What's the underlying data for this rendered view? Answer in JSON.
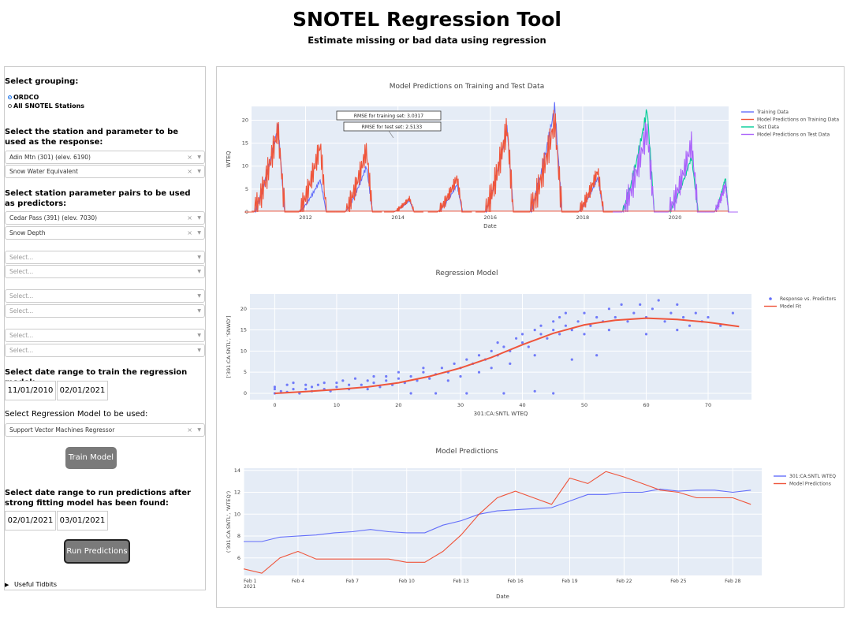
{
  "header": {
    "title": "SNOTEL Regression Tool",
    "subtitle": "Estimate missing or bad data using regression"
  },
  "sidebar": {
    "grouping_label": "Select grouping:",
    "grouping_options": [
      "ORDCO",
      "All SNOTEL Stations"
    ],
    "grouping_selected": "ORDCO",
    "response_label": "Select the station and parameter to be used as the response:",
    "response_station": "Adin Mtn (301) (elev. 6190)",
    "response_param": "Snow Water Equivalent",
    "predictors_label": "Select station parameter pairs to be used as predictors:",
    "predictor_station": "Cedar Pass (391) (elev. 7030)",
    "predictor_param": "Snow Depth",
    "empty_placeholder": "Select...",
    "train_range_label": "Select date range to train the regression model:",
    "train_start": "11/01/2010",
    "train_end": "02/01/2021",
    "model_label": "Select Regression Model to be used:",
    "model_selected": "Support Vector Machines Regressor",
    "train_button": "Train Model",
    "predict_range_label": "Select date range to run predictions after strong fitting model has been found:",
    "predict_start": "02/01/2021",
    "predict_end": "03/01/2021",
    "predict_button": "Run Predictions",
    "tidbits": "Useful Tidbits"
  },
  "colors": {
    "plot_bg": "#e5ecf6",
    "blue": "#636efa",
    "red": "#ef553b",
    "green": "#00cc96",
    "purple": "#ab63fa"
  },
  "chart_data": [
    {
      "type": "line",
      "title": "Model Predictions on Training and Test Data",
      "xlabel": "Date",
      "ylabel": "WTEQ",
      "ylim": [
        0,
        23
      ],
      "yticks": [
        0,
        5,
        10,
        15,
        20
      ],
      "xticks": [
        "2012",
        "2014",
        "2016",
        "2018",
        "2020"
      ],
      "xlim": [
        2010.83,
        2021.16
      ],
      "legend": [
        "Training Data",
        "Model Predictions on Training Data",
        "Test Data",
        "Model Predictions on Test Data"
      ],
      "annotations": [
        "RMSE for training set:  3.0317",
        "RMSE for test set:  2.5133"
      ],
      "season_peaks": [
        {
          "year": 2011,
          "train": 18.5,
          "pred": 18.0,
          "start": 2010.88,
          "end": 2011.55
        },
        {
          "year": 2012,
          "train": 7.0,
          "pred": 14.5,
          "start": 2011.85,
          "end": 2012.45
        },
        {
          "year": 2013,
          "train": 10.0,
          "pred": 13.5,
          "start": 2012.85,
          "end": 2013.45
        },
        {
          "year": 2014,
          "train": 2.5,
          "pred": 3.0,
          "start": 2013.9,
          "end": 2014.35
        },
        {
          "year": 2015,
          "train": 6.0,
          "pred": 7.5,
          "start": 2014.85,
          "end": 2015.4
        },
        {
          "year": 2016,
          "train": 18.5,
          "pred": 18.5,
          "start": 2015.88,
          "end": 2016.5
        },
        {
          "year": 2017,
          "train": 23.0,
          "pred": 20.0,
          "start": 2016.85,
          "end": 2017.55
        },
        {
          "year": 2018,
          "train": 7.5,
          "pred": 9.0,
          "start": 2017.9,
          "end": 2018.45
        },
        {
          "year": 2019,
          "train": 22.5,
          "pred": 18.0,
          "start": 2018.85,
          "end": 2019.55
        },
        {
          "year": 2020,
          "train": 12.0,
          "pred": 15.0,
          "start": 2019.85,
          "end": 2020.5
        },
        {
          "year": 2021,
          "train": 7.5,
          "pred": 6.0,
          "start": 2020.85,
          "end": 2021.16
        }
      ],
      "test_start": 2018.3
    },
    {
      "type": "scatter",
      "title": "Regression Model",
      "xlabel": "301:CA:SNTL WTEQ",
      "ylabel": "['391:CA:SNTL', 'SNWD']",
      "xlim": [
        -4,
        77
      ],
      "ylim": [
        -1.5,
        23.5
      ],
      "xticks": [
        0,
        10,
        20,
        30,
        40,
        50,
        60,
        70
      ],
      "yticks": [
        0,
        5,
        10,
        15,
        20
      ],
      "legend": [
        "Response vs. Predictors",
        "Model Fit"
      ],
      "fit": [
        [
          0,
          0
        ],
        [
          5,
          0.4
        ],
        [
          10,
          0.9
        ],
        [
          15,
          1.5
        ],
        [
          20,
          2.5
        ],
        [
          25,
          4.0
        ],
        [
          30,
          6.0
        ],
        [
          35,
          8.5
        ],
        [
          40,
          11.5
        ],
        [
          45,
          14.2
        ],
        [
          50,
          16.2
        ],
        [
          55,
          17.3
        ],
        [
          60,
          17.8
        ],
        [
          65,
          17.5
        ],
        [
          70,
          16.8
        ],
        [
          75,
          15.8
        ]
      ],
      "points": [
        [
          0,
          0
        ],
        [
          0,
          1
        ],
        [
          0,
          1.5
        ],
        [
          1,
          0.5
        ],
        [
          2,
          2
        ],
        [
          2,
          0.3
        ],
        [
          3,
          1
        ],
        [
          3,
          2.5
        ],
        [
          4,
          0
        ],
        [
          5,
          1
        ],
        [
          5,
          2
        ],
        [
          6,
          1.5
        ],
        [
          6,
          0.5
        ],
        [
          7,
          2
        ],
        [
          8,
          1
        ],
        [
          8,
          2.5
        ],
        [
          9,
          0.5
        ],
        [
          10,
          1.5
        ],
        [
          10,
          2.5
        ],
        [
          11,
          3
        ],
        [
          12,
          1
        ],
        [
          12,
          2
        ],
        [
          13,
          3.5
        ],
        [
          14,
          2
        ],
        [
          15,
          1
        ],
        [
          15,
          3
        ],
        [
          16,
          2.5
        ],
        [
          16,
          4
        ],
        [
          17,
          1.5
        ],
        [
          18,
          3
        ],
        [
          18,
          4
        ],
        [
          19,
          2
        ],
        [
          20,
          3.5
        ],
        [
          20,
          5
        ],
        [
          21,
          2.5
        ],
        [
          22,
          4
        ],
        [
          22,
          0
        ],
        [
          23,
          3
        ],
        [
          24,
          5
        ],
        [
          24,
          6
        ],
        [
          25,
          3.5
        ],
        [
          26,
          4.5
        ],
        [
          26,
          0
        ],
        [
          27,
          6
        ],
        [
          28,
          5
        ],
        [
          28,
          3
        ],
        [
          29,
          7
        ],
        [
          30,
          6
        ],
        [
          30,
          4
        ],
        [
          31,
          8
        ],
        [
          31,
          0
        ],
        [
          32,
          7
        ],
        [
          33,
          9
        ],
        [
          33,
          5
        ],
        [
          34,
          8
        ],
        [
          35,
          10
        ],
        [
          35,
          6
        ],
        [
          36,
          9
        ],
        [
          36,
          12
        ],
        [
          37,
          11
        ],
        [
          37,
          0
        ],
        [
          38,
          10
        ],
        [
          38,
          7
        ],
        [
          39,
          13
        ],
        [
          40,
          12
        ],
        [
          40,
          14
        ],
        [
          41,
          11
        ],
        [
          42,
          15
        ],
        [
          42,
          9
        ],
        [
          42,
          0.5
        ],
        [
          43,
          14
        ],
        [
          43,
          16
        ],
        [
          44,
          13
        ],
        [
          45,
          17
        ],
        [
          45,
          15
        ],
        [
          45,
          0
        ],
        [
          46,
          18
        ],
        [
          46,
          14
        ],
        [
          47,
          16
        ],
        [
          47,
          19
        ],
        [
          48,
          15
        ],
        [
          48,
          8
        ],
        [
          49,
          17
        ],
        [
          50,
          19
        ],
        [
          50,
          14
        ],
        [
          51,
          16
        ],
        [
          52,
          18
        ],
        [
          52,
          9
        ],
        [
          53,
          17
        ],
        [
          54,
          20
        ],
        [
          54,
          15
        ],
        [
          55,
          18
        ],
        [
          56,
          21
        ],
        [
          57,
          17
        ],
        [
          58,
          19
        ],
        [
          59,
          21
        ],
        [
          60,
          18
        ],
        [
          60,
          14
        ],
        [
          61,
          20
        ],
        [
          62,
          22
        ],
        [
          63,
          17
        ],
        [
          64,
          19
        ],
        [
          65,
          21
        ],
        [
          65,
          15
        ],
        [
          66,
          18
        ],
        [
          67,
          16
        ],
        [
          68,
          19
        ],
        [
          69,
          17
        ],
        [
          70,
          18
        ],
        [
          72,
          16
        ],
        [
          74,
          19
        ]
      ]
    },
    {
      "type": "line",
      "title": "Model Predictions",
      "xlabel": "Date",
      "ylabel": "('301:CA:SNTL', 'WTEQ')",
      "ylim": [
        4.4,
        14.2
      ],
      "yticks": [
        6,
        8,
        10,
        12,
        14
      ],
      "xticks": [
        "Feb 1\n2021",
        "Feb 4",
        "Feb 7",
        "Feb 10",
        "Feb 13",
        "Feb 16",
        "Feb 19",
        "Feb 22",
        "Feb 25",
        "Feb 28"
      ],
      "xlim": [
        1,
        29.6
      ],
      "legend": [
        "301:CA:SNTL WTEQ",
        "Model Predictions"
      ],
      "x": [
        1,
        2,
        3,
        4,
        5,
        6,
        7,
        8,
        9,
        10,
        11,
        12,
        13,
        14,
        15,
        16,
        17,
        18,
        19,
        20,
        21,
        22,
        23,
        24,
        25,
        26,
        27,
        28,
        29
      ],
      "series": [
        {
          "name": "301:CA:SNTL WTEQ",
          "values": [
            7.5,
            7.5,
            7.9,
            8.0,
            8.1,
            8.3,
            8.4,
            8.6,
            8.4,
            8.3,
            8.3,
            9.0,
            9.4,
            10.0,
            10.3,
            10.4,
            10.5,
            10.6,
            11.2,
            11.8,
            11.8,
            12.0,
            12.0,
            12.3,
            12.1,
            12.2,
            12.2,
            12.0,
            12.2
          ]
        },
        {
          "name": "Model Predictions",
          "values": [
            5.0,
            4.6,
            6.0,
            6.6,
            5.9,
            5.9,
            5.9,
            5.9,
            5.9,
            5.6,
            5.6,
            6.6,
            8.1,
            10.0,
            11.5,
            12.1,
            11.5,
            10.9,
            13.3,
            12.8,
            13.9,
            13.4,
            12.8,
            12.2,
            12.0,
            11.5,
            11.5,
            11.5,
            10.9
          ]
        }
      ]
    }
  ]
}
